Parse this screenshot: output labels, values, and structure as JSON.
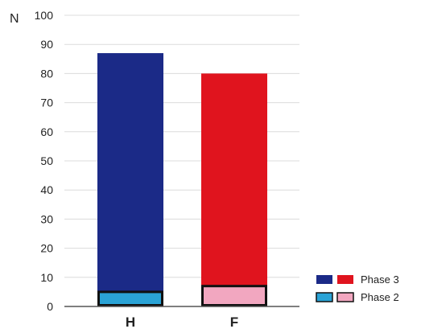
{
  "chart_data": {
    "type": "bar",
    "ylabel": "N",
    "ylim": [
      0,
      100
    ],
    "yticks": [
      0,
      10,
      20,
      30,
      40,
      50,
      60,
      70,
      80,
      90,
      100
    ],
    "grid": true,
    "categories": [
      "H",
      "F"
    ],
    "series": [
      {
        "name": "Phase 3",
        "values": [
          87,
          80
        ],
        "colors": [
          "#1b2a87",
          "#e0141e"
        ]
      },
      {
        "name": "Phase 2",
        "values": [
          5,
          7
        ],
        "colors": [
          "#2aa3d6",
          "#f2a7c0"
        ]
      }
    ],
    "legend_position": "bottom-right"
  }
}
